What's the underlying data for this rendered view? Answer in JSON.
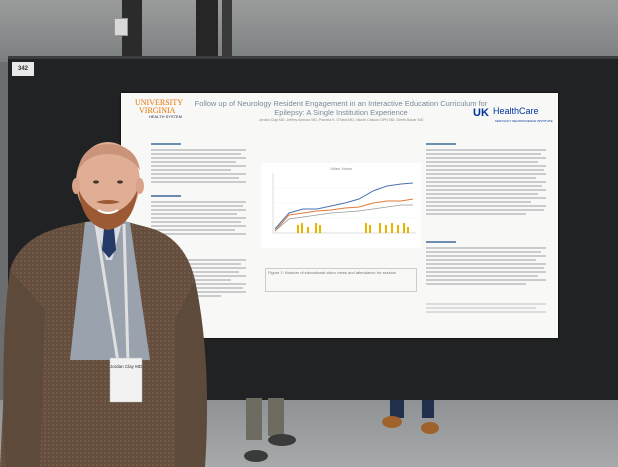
{
  "poster": {
    "title_line1": "Follow up of Neurology Resident Engagement in an Interactive Education Curriculum for",
    "title_line2": "Epilepsy: A Single Institution Experience",
    "authors": "Jordan Clay MD, Jeffrey Azmour MD, Pamela K. O'Neal MD, Nicole Chacon DPN MD, Derek Bauer MD",
    "uva_name_1": "UNIVERSITY",
    "uva_name_2": "VIRGINIA",
    "uva_sub": "HEALTH SYSTEM",
    "uk_mark": "UK",
    "uk_name": "HealthCare",
    "uk_sub": "KENTUCKY NEUROSCIENCE INSTITUTE",
    "chart_title": "Video Views",
    "figure_caption": "Figure 1: Number of educational video views and attendance for session"
  },
  "board_tag": "342",
  "badge_name": "Jordan Clay MD",
  "colors": {
    "uva_orange": "#e57200",
    "uk_blue": "#0033a0",
    "board": "#202223"
  }
}
